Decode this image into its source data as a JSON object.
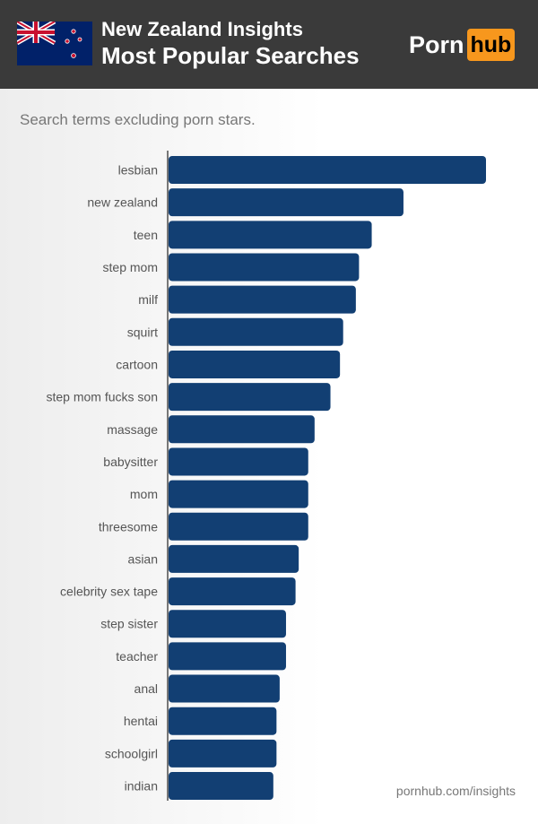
{
  "header": {
    "title_line1": "New Zealand Insights",
    "title_line2": "Most Popular Searches",
    "logo_left": "Porn",
    "logo_right": "hub",
    "flag": "new-zealand-flag",
    "accent": "#f7971d"
  },
  "subtitle": "Search terms excluding porn stars.",
  "source": "pornhub.com/insights",
  "chart_data": {
    "type": "bar",
    "orientation": "horizontal",
    "bar_color": "#123f73",
    "categories": [
      "lesbian",
      "new zealand",
      "teen",
      "step mom",
      "milf",
      "squirt",
      "cartoon",
      "step mom fucks son",
      "massage",
      "babysitter",
      "mom",
      "threesome",
      "asian",
      "celebrity sex tape",
      "step sister",
      "teacher",
      "anal",
      "hentai",
      "schoolgirl",
      "indian"
    ],
    "values": [
      100,
      74,
      64,
      60,
      59,
      55,
      54,
      51,
      46,
      44,
      44,
      44,
      41,
      40,
      37,
      37,
      35,
      34,
      34,
      33
    ],
    "grid": false
  }
}
